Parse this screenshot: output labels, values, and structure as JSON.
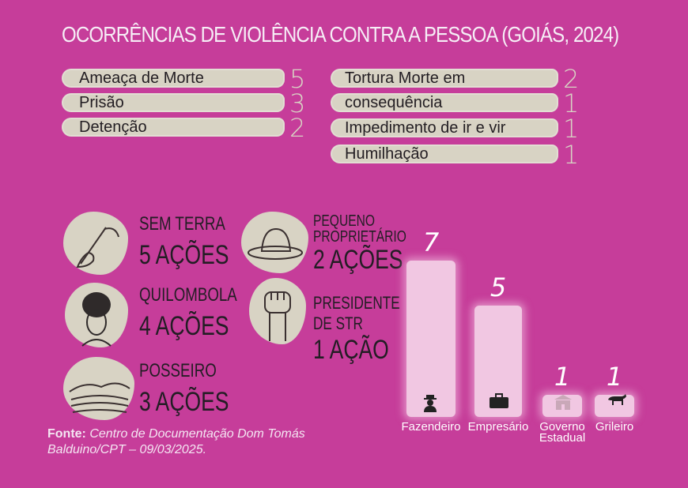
{
  "title": "OCORRÊNCIAS DE VIOLÊNCIA CONTRA A PESSOA (GOIÁS, 2024)",
  "occurrences": [
    {
      "label": "Ameaça de Morte",
      "value": "5"
    },
    {
      "label": "Prisão",
      "value": "3"
    },
    {
      "label": "Detenção",
      "value": "2"
    },
    {
      "label": "Tortura Morte em",
      "value": "2"
    },
    {
      "label": "consequência",
      "value": "1"
    },
    {
      "label": "Impedimento de ir e vir",
      "value": "1"
    },
    {
      "label": "Humilhação",
      "value": "1"
    }
  ],
  "groups": [
    {
      "name": "SEM TERRA",
      "count": "5 AÇÕES",
      "icon": "sickle-hand-icon"
    },
    {
      "name": "QUILOMBOLA",
      "count": "4 AÇÕES",
      "icon": "woman-turban-icon"
    },
    {
      "name": "POSSEIRO",
      "count": "3 AÇÕES",
      "icon": "landscape-icon"
    },
    {
      "name_line1": "PEQUENO",
      "name_line2": "PROPRIETÁRIO",
      "count": "2 AÇÕES",
      "icon": "straw-hat-icon"
    },
    {
      "name_line1": "PRESIDENTE",
      "name_line2": "DE STR",
      "count": "1 AÇÃO",
      "icon": "raised-fist-icon"
    }
  ],
  "chart_data": {
    "type": "bar",
    "categories": [
      "Fazendeiro",
      "Empresário",
      "Governo Estadual",
      "Grileiro"
    ],
    "category_lines": [
      [
        "Fazendeiro"
      ],
      [
        "Empresário"
      ],
      [
        "Governo",
        "Estadual"
      ],
      [
        "Grileiro"
      ]
    ],
    "values": [
      7,
      5,
      1,
      1
    ],
    "value_labels": [
      "7",
      "5",
      "1",
      "1"
    ],
    "icons": [
      "farmer-icon",
      "briefcase-icon",
      "government-building-icon",
      "cattle-icon"
    ],
    "colors": {
      "bar": "#f1c7e2",
      "background": "#c63d9a"
    }
  },
  "source": {
    "label": "Fonte:",
    "text": "Centro de Documentação Dom Tomás Balduino/CPT – 09/03/2025."
  }
}
